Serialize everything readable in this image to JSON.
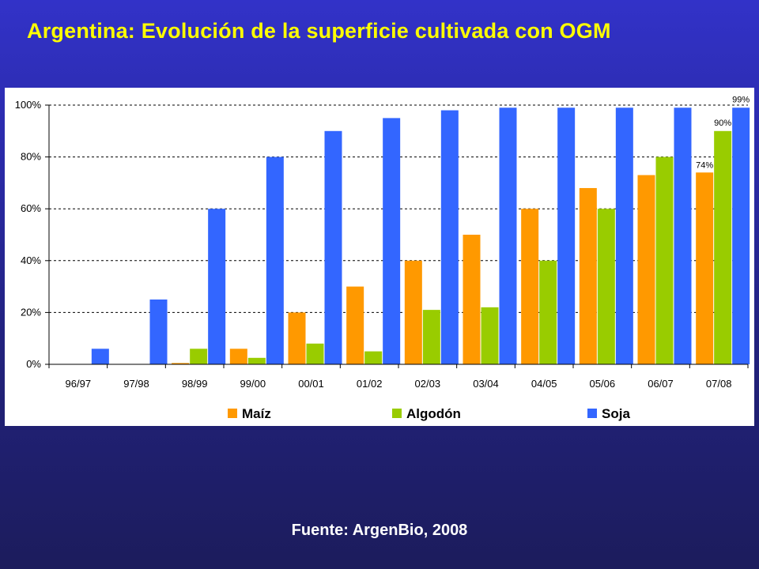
{
  "page": {
    "title": "Argentina: Evolución de la superficie cultivada con OGM",
    "source": "Fuente: ArgenBio, 2008"
  },
  "chart_data": {
    "type": "bar",
    "title": "",
    "xlabel": "",
    "ylabel": "",
    "ylim": [
      0,
      100
    ],
    "y_ticks": [
      "0%",
      "20%",
      "40%",
      "60%",
      "80%",
      "100%"
    ],
    "grid": "horizontal dashed",
    "legend_position": "bottom",
    "categories": [
      "96/97",
      "97/98",
      "98/99",
      "99/00",
      "00/01",
      "01/02",
      "02/03",
      "03/04",
      "04/05",
      "05/06",
      "06/07",
      "07/08"
    ],
    "series": [
      {
        "name": "Maíz",
        "color": "#ff9900",
        "values": [
          0,
          0,
          0.5,
          6,
          20,
          30,
          40,
          50,
          60,
          68,
          73,
          74
        ]
      },
      {
        "name": "Algodón",
        "color": "#99cc00",
        "values": [
          0,
          0,
          6,
          2.5,
          8,
          5,
          21,
          22,
          40,
          60,
          80,
          90
        ]
      },
      {
        "name": "Soja",
        "color": "#3366ff",
        "values": [
          6,
          25,
          60,
          80,
          90,
          95,
          98,
          99,
          99,
          99,
          99,
          99
        ]
      }
    ],
    "data_labels": [
      {
        "series": 0,
        "category": 11,
        "text": "74%"
      },
      {
        "series": 1,
        "category": 11,
        "text": "90%"
      },
      {
        "series": 2,
        "category": 11,
        "text": "99%"
      }
    ]
  }
}
